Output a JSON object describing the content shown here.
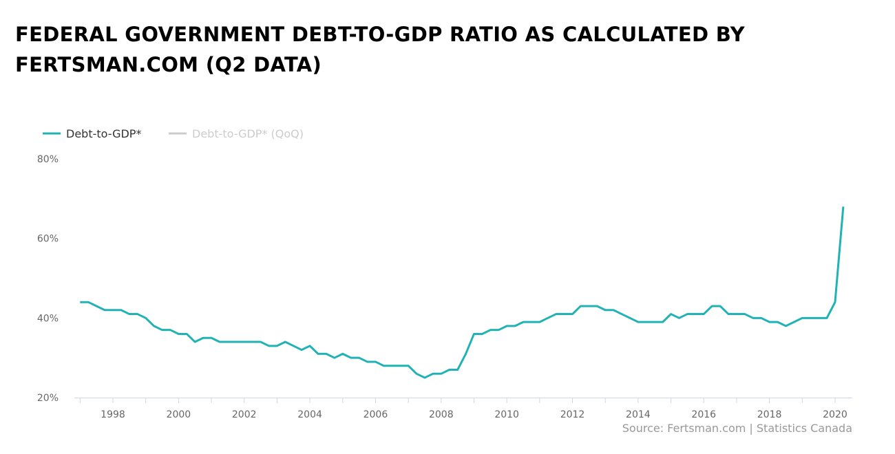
{
  "chart_data": {
    "type": "line",
    "title": "FEDERAL GOVERNMENT DEBT-TO-GDP RATIO AS CALCULATED BY FERTSMAN.COM (Q2 DATA)",
    "xlabel": "",
    "ylabel": "",
    "ylim": [
      20,
      80
    ],
    "xlim": [
      1996.8,
      2020.5
    ],
    "yticks": [
      "20%",
      "40%",
      "60%",
      "80%"
    ],
    "ytick_values": [
      20,
      40,
      60,
      80
    ],
    "xticks": [
      "1998",
      "2000",
      "2002",
      "2004",
      "2006",
      "2008",
      "2010",
      "2012",
      "2014",
      "2016",
      "2018",
      "2020"
    ],
    "x_start": 1997.0,
    "x_step": 0.25,
    "legend_placement": "top-left",
    "series": [
      {
        "name": "Debt-to-GDP*",
        "color": "#20b2b5",
        "visible": true,
        "values": [
          44,
          44,
          43,
          42,
          42,
          42,
          41,
          41,
          40,
          38,
          37,
          37,
          36,
          36,
          34,
          35,
          35,
          34,
          34,
          34,
          34,
          34,
          34,
          33,
          33,
          34,
          33,
          32,
          33,
          31,
          31,
          30,
          31,
          30,
          30,
          29,
          29,
          28,
          28,
          28,
          28,
          26,
          25,
          26,
          26,
          27,
          27,
          31,
          36,
          36,
          37,
          37,
          38,
          38,
          39,
          39,
          39,
          40,
          41,
          41,
          41,
          43,
          43,
          43,
          42,
          42,
          41,
          40,
          39,
          39,
          39,
          39,
          41,
          40,
          41,
          41,
          41,
          43,
          43,
          41,
          41,
          41,
          40,
          40,
          39,
          39,
          38,
          39,
          40,
          40,
          40,
          40,
          44,
          68
        ]
      },
      {
        "name": "Debt-to-GDP* (QoQ)",
        "color": "#cccccc",
        "visible": false,
        "values": []
      }
    ],
    "source": "Source: Fertsman.com | Statistics Canada"
  }
}
